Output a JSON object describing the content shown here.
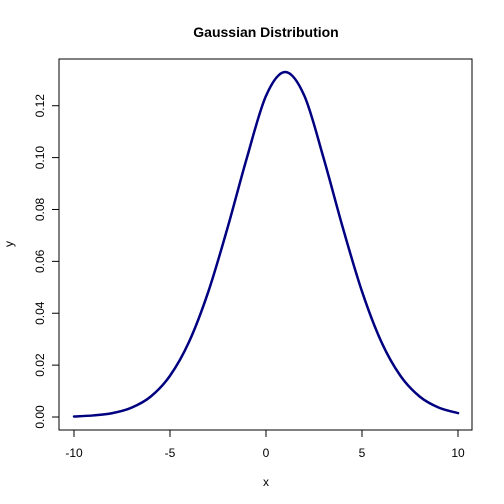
{
  "chart_data": {
    "type": "line",
    "title": "Gaussian Distribution",
    "xlabel": "x",
    "ylabel": "y",
    "xlim": [
      -10,
      10
    ],
    "ylim": [
      0,
      0.133
    ],
    "x_ticks": [
      -10,
      -5,
      0,
      5,
      10
    ],
    "x_tick_labels": [
      "-10",
      "-5",
      "0",
      "5",
      "10"
    ],
    "y_ticks": [
      0,
      0.02,
      0.04,
      0.06,
      0.08,
      0.1,
      0.12
    ],
    "y_tick_labels": [
      "0.00",
      "0.02",
      "0.04",
      "0.06",
      "0.08",
      "0.10",
      "0.12"
    ],
    "grid": false,
    "series": [
      {
        "color": "#000080",
        "x": [
          -10,
          -9,
          -8,
          -7,
          -6,
          -5,
          -4,
          -3,
          -2,
          -1,
          0,
          1,
          2,
          3,
          4,
          5,
          6,
          7,
          8,
          9,
          10
        ],
        "y": [
          0.0002,
          0.0006,
          0.0015,
          0.0036,
          0.0079,
          0.0159,
          0.0291,
          0.0484,
          0.073,
          0.0998,
          0.1238,
          0.133,
          0.1238,
          0.0998,
          0.073,
          0.0484,
          0.0291,
          0.0159,
          0.0079,
          0.0036,
          0.0015
        ]
      }
    ]
  }
}
